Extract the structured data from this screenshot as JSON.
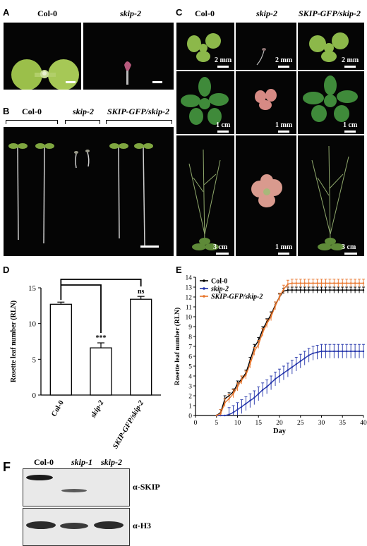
{
  "panels": {
    "A": {
      "letter": "A",
      "labels": [
        "Col-0",
        "skip-2"
      ]
    },
    "B": {
      "letter": "B",
      "labels": [
        "Col-0",
        "skip-2",
        "SKIP-GFP/skip-2"
      ]
    },
    "C": {
      "letter": "C",
      "labels": [
        "Col-0",
        "skip-2",
        "SKIP-GFP/skip-2"
      ],
      "scales": [
        [
          "2 mm",
          "2 mm",
          "2 mm"
        ],
        [
          "1 cm",
          "1 mm",
          "1 cm"
        ],
        [
          "3 cm",
          "1 mm",
          "3 cm"
        ]
      ]
    },
    "D": {
      "letter": "D"
    },
    "E": {
      "letter": "E"
    },
    "F": {
      "letter": "F",
      "lanes": [
        "Col-0",
        "skip-1",
        "skip-2"
      ],
      "antibodies": [
        "α-SKIP",
        "α-H3"
      ]
    }
  },
  "chart_data": [
    {
      "type": "bar",
      "panel": "D",
      "categories": [
        "Col-0",
        "skip-2",
        "SKIP-GFP/skip-2"
      ],
      "values": [
        12.7,
        6.6,
        13.4
      ],
      "errors": [
        0.3,
        0.7,
        0.4
      ],
      "annotations": [
        "",
        "***",
        "ns"
      ],
      "ylabel": "Rosette leaf number (RLN)",
      "ylim": [
        0,
        15
      ],
      "yticks": [
        0,
        5,
        10,
        15
      ]
    },
    {
      "type": "line",
      "panel": "E",
      "xlabel": "Day",
      "ylabel": "Rosette leaf number (RLN)",
      "xlim": [
        0,
        40
      ],
      "ylim": [
        0,
        14
      ],
      "xticks": [
        0,
        5,
        10,
        15,
        20,
        25,
        30,
        35,
        40
      ],
      "yticks": [
        0,
        1,
        2,
        3,
        4,
        5,
        6,
        7,
        8,
        9,
        10,
        11,
        12,
        13,
        14
      ],
      "legend": "top-left",
      "series": [
        {
          "name": "Col-0",
          "color": "#000000",
          "x": [
            5,
            6,
            7,
            8,
            9,
            10,
            11,
            12,
            13,
            14,
            15,
            16,
            17,
            18,
            19,
            20,
            21,
            22,
            23,
            24,
            25,
            26,
            27,
            28,
            29,
            30,
            31,
            32,
            33,
            34,
            35,
            36,
            37,
            38,
            39,
            40
          ],
          "y": [
            0,
            0.3,
            1.7,
            2.0,
            2.4,
            3.2,
            3.7,
            4.3,
            5.6,
            6.9,
            7.6,
            8.7,
            9.5,
            10.2,
            11.2,
            12.0,
            12.6,
            12.7,
            12.7,
            12.7,
            12.7,
            12.7,
            12.7,
            12.7,
            12.7,
            12.7,
            12.7,
            12.7,
            12.7,
            12.7,
            12.7,
            12.7,
            12.7,
            12.7,
            12.7,
            12.7
          ],
          "err": 0.3
        },
        {
          "name": "skip-2",
          "color": "#2233aa",
          "x": [
            5,
            6,
            7,
            8,
            9,
            10,
            11,
            12,
            13,
            14,
            15,
            16,
            17,
            18,
            19,
            20,
            21,
            22,
            23,
            24,
            25,
            26,
            27,
            28,
            29,
            30,
            31,
            32,
            33,
            34,
            35,
            36,
            37,
            38,
            39,
            40
          ],
          "y": [
            0,
            0,
            0,
            0.1,
            0.3,
            0.6,
            0.9,
            1.2,
            1.5,
            1.8,
            2.2,
            2.6,
            2.9,
            3.3,
            3.7,
            4.0,
            4.3,
            4.6,
            4.9,
            5.2,
            5.5,
            5.8,
            6.1,
            6.3,
            6.4,
            6.5,
            6.5,
            6.5,
            6.5,
            6.5,
            6.5,
            6.5,
            6.5,
            6.5,
            6.5,
            6.5
          ],
          "err": 0.7
        },
        {
          "name": "SKIP-GFP/skip-2",
          "color": "#e8742a",
          "x": [
            5,
            6,
            7,
            8,
            9,
            10,
            11,
            12,
            13,
            14,
            15,
            16,
            17,
            18,
            19,
            20,
            21,
            22,
            23,
            24,
            25,
            26,
            27,
            28,
            29,
            30,
            31,
            32,
            33,
            34,
            35,
            36,
            37,
            38,
            39,
            40
          ],
          "y": [
            0,
            0.2,
            1.3,
            1.7,
            2.2,
            2.9,
            3.6,
            4.1,
            5.2,
            6.5,
            7.2,
            8.4,
            9.3,
            10.0,
            11.1,
            12.0,
            12.8,
            13.3,
            13.4,
            13.4,
            13.4,
            13.4,
            13.4,
            13.4,
            13.4,
            13.4,
            13.4,
            13.4,
            13.4,
            13.4,
            13.4,
            13.4,
            13.4,
            13.4,
            13.4,
            13.4
          ],
          "err": 0.4
        }
      ]
    }
  ]
}
